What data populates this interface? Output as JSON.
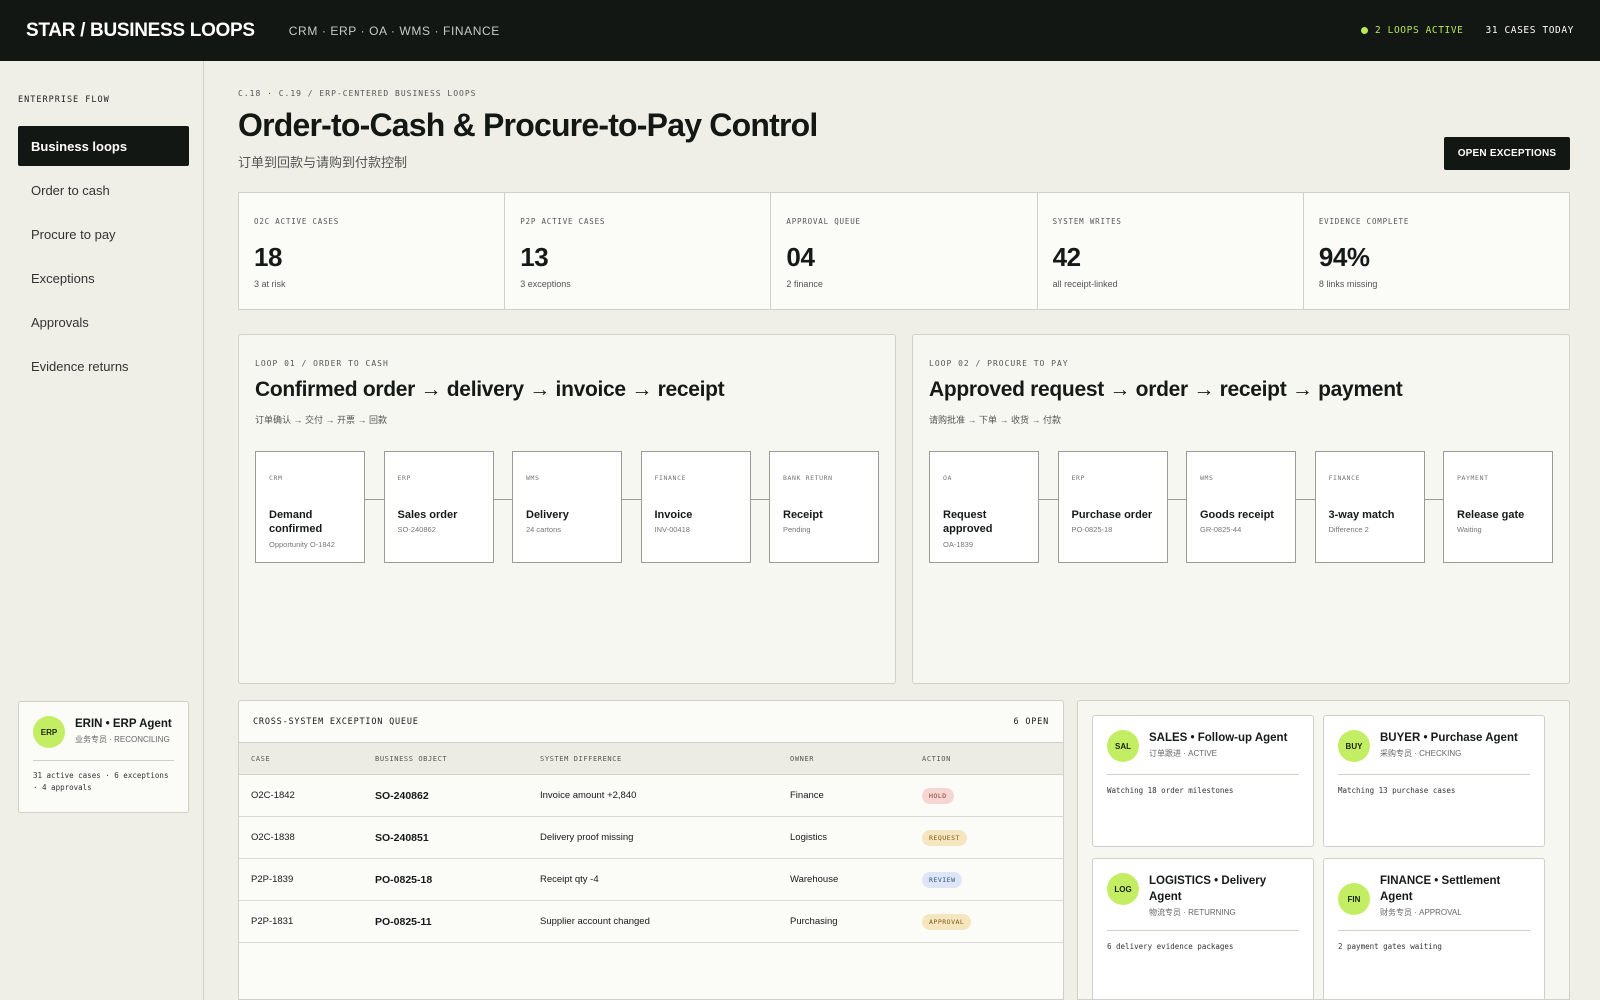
{
  "app": {
    "brand": "STAR / BUSINESS LOOPS",
    "systems": "CRM · ERP · OA · WMS · FINANCE",
    "loops_active": "2 LOOPS ACTIVE",
    "cases_today": "31 CASES TODAY"
  },
  "sidebar": {
    "section": "ENTERPRISE FLOW",
    "items": [
      {
        "label": "Business loops"
      },
      {
        "label": "Order to cash"
      },
      {
        "label": "Procure to pay"
      },
      {
        "label": "Exceptions"
      },
      {
        "label": "Approvals"
      },
      {
        "label": "Evidence returns"
      }
    ],
    "agent": {
      "avatar": "ERP",
      "name": "ERIN • ERP Agent",
      "status": "业务专员 · RECONCILING",
      "note": "31 active cases · 6 exceptions · 4 approvals"
    }
  },
  "header": {
    "breadcrumb": "C.18 · C.19 / ERP-CENTERED BUSINESS LOOPS",
    "title": "Order-to-Cash & Procure-to-Pay Control",
    "subtitle": "订单到回款与请购到付款控制",
    "action": "OPEN EXCEPTIONS"
  },
  "kpis": [
    {
      "label": "O2C ACTIVE CASES",
      "value": "18",
      "note": "3 at risk"
    },
    {
      "label": "P2P ACTIVE CASES",
      "value": "13",
      "note": "3 exceptions"
    },
    {
      "label": "APPROVAL QUEUE",
      "value": "04",
      "note": "2 finance"
    },
    {
      "label": "SYSTEM WRITES",
      "value": "42",
      "note": "all receipt-linked"
    },
    {
      "label": "EVIDENCE COMPLETE",
      "value": "94%",
      "note": "8 links missing"
    }
  ],
  "loops": [
    {
      "crumb": "LOOP 01 / ORDER TO CASH",
      "title": "Confirmed order → delivery → invoice → receipt",
      "subtitle": "订单确认 → 交付 → 开票 → 回款",
      "steps": [
        {
          "system": "CRM",
          "name": "Demand confirmed",
          "ref": "Opportunity O-1842"
        },
        {
          "system": "ERP",
          "name": "Sales order",
          "ref": "SO-240862"
        },
        {
          "system": "WMS",
          "name": "Delivery",
          "ref": "24 cartons"
        },
        {
          "system": "FINANCE",
          "name": "Invoice",
          "ref": "INV-00418"
        },
        {
          "system": "BANK RETURN",
          "name": "Receipt",
          "ref": "Pending"
        }
      ]
    },
    {
      "crumb": "LOOP 02 / PROCURE TO PAY",
      "title": "Approved request → order → receipt → payment",
      "subtitle": "请购批准 → 下单 → 收货 → 付款",
      "steps": [
        {
          "system": "OA",
          "name": "Request approved",
          "ref": "OA-1839"
        },
        {
          "system": "ERP",
          "name": "Purchase order",
          "ref": "PO-0825-18"
        },
        {
          "system": "WMS",
          "name": "Goods receipt",
          "ref": "GR-0825-44"
        },
        {
          "system": "FINANCE",
          "name": "3-way match",
          "ref": "Difference 2"
        },
        {
          "system": "PAYMENT",
          "name": "Release gate",
          "ref": "Waiting"
        }
      ]
    }
  ],
  "queue": {
    "title": "CROSS-SYSTEM EXCEPTION QUEUE",
    "count": "6 OPEN",
    "columns": [
      "CASE",
      "BUSINESS OBJECT",
      "SYSTEM DIFFERENCE",
      "OWNER",
      "ACTION"
    ],
    "rows": [
      {
        "case": "O2C-1842",
        "object": "SO-240862",
        "difference": "Invoice amount +2,840",
        "owner": "Finance",
        "action": "HOLD",
        "action_color": "#f6d6d2"
      },
      {
        "case": "O2C-1838",
        "object": "SO-240851",
        "difference": "Delivery proof missing",
        "owner": "Logistics",
        "action": "REQUEST",
        "action_color": "#f6e6bf"
      },
      {
        "case": "P2P-1839",
        "object": "PO-0825-18",
        "difference": "Receipt qty -4",
        "owner": "Warehouse",
        "action": "REVIEW",
        "action_color": "#dde6f6"
      },
      {
        "case": "P2P-1831",
        "object": "PO-0825-11",
        "difference": "Supplier account changed",
        "owner": "Purchasing",
        "action": "APPROVAL",
        "action_color": "#f6e6bf"
      }
    ]
  },
  "agents": [
    {
      "avatar": "SAL",
      "name": "SALES • Follow-up Agent",
      "status": "订单跟进 · ACTIVE",
      "note": "Watching 18 order milestones"
    },
    {
      "avatar": "BUY",
      "name": "BUYER • Purchase Agent",
      "status": "采购专员 · CHECKING",
      "note": "Matching 13 purchase cases"
    },
    {
      "avatar": "LOG",
      "name": "LOGISTICS • Delivery Agent",
      "status": "物流专员 · RETURNING",
      "note": "6 delivery evidence packages"
    },
    {
      "avatar": "FIN",
      "name": "FINANCE • Settlement Agent",
      "status": "财务专员 · APPROVAL",
      "note": "2 payment gates waiting"
    }
  ],
  "colors": {
    "accent": "#c3ee63",
    "dark": "#121714",
    "live": "#b7e85a"
  }
}
